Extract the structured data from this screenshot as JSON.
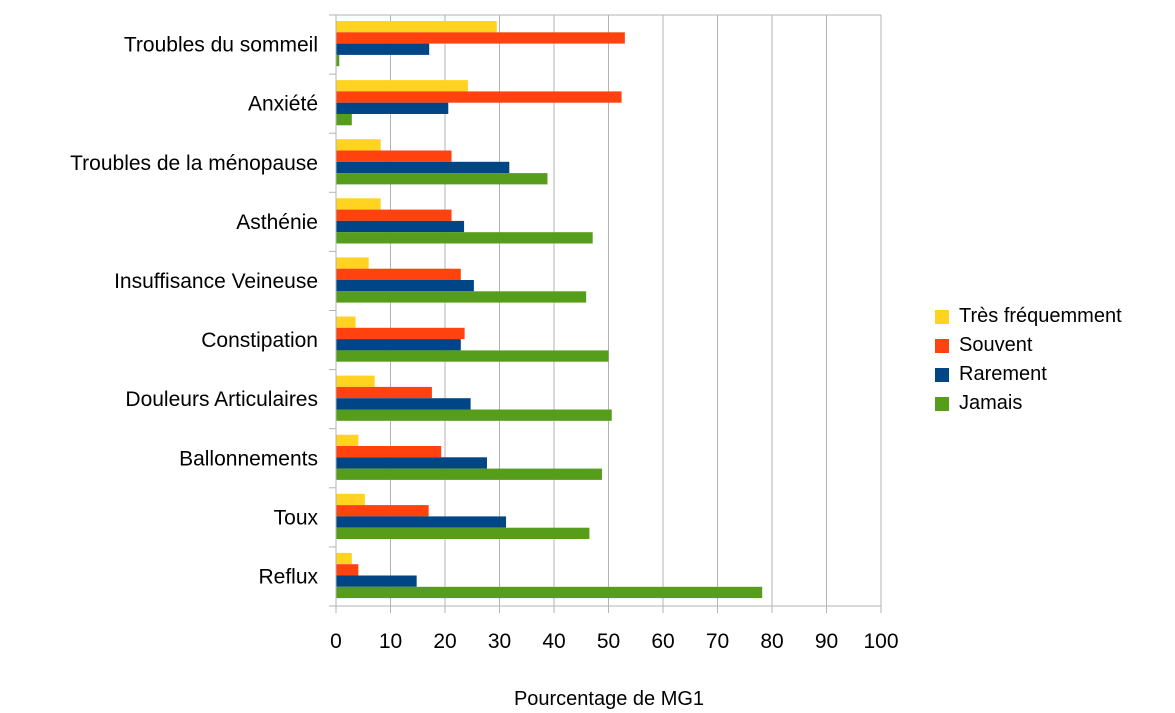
{
  "chart_data": {
    "type": "bar",
    "orientation": "horizontal",
    "categories": [
      "Troubles du sommeil",
      "Anxiété",
      "Troubles de la ménopause",
      "Asthénie",
      "Insuffisance Veineuse",
      "Constipation",
      "Douleurs Articulaires",
      "Ballonnements",
      "Toux",
      "Reflux"
    ],
    "series": [
      {
        "name": "Très fréquemment",
        "color": "#ffd320",
        "values": [
          29.5,
          24.2,
          8.2,
          8.2,
          6.0,
          3.6,
          7.1,
          4.1,
          5.3,
          2.9
        ]
      },
      {
        "name": "Souvent",
        "color": "#ff420e",
        "values": [
          53.0,
          52.4,
          21.2,
          21.2,
          22.9,
          23.6,
          17.6,
          19.3,
          17.0,
          4.1
        ]
      },
      {
        "name": "Rarement",
        "color": "#004586",
        "values": [
          17.1,
          20.6,
          31.8,
          23.5,
          25.3,
          22.9,
          24.7,
          27.7,
          31.2,
          14.8
        ]
      },
      {
        "name": "Jamais",
        "color": "#579d1c",
        "values": [
          0.6,
          2.9,
          38.8,
          47.1,
          45.9,
          50.0,
          50.6,
          48.8,
          46.5,
          78.2
        ]
      }
    ],
    "xlim": [
      0,
      100
    ],
    "xticks": [
      "0",
      "10",
      "20",
      "30",
      "40",
      "50",
      "60",
      "70",
      "80",
      "90",
      "100"
    ],
    "xlabel": "Pourcentage de MG1",
    "ylabel": "",
    "title": "",
    "grid": "vertical",
    "legend_position": "right"
  }
}
